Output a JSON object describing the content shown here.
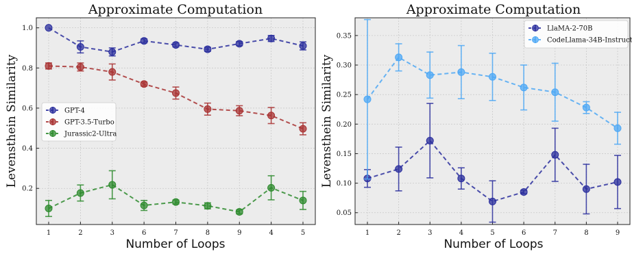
{
  "chart_data": [
    {
      "type": "line",
      "title": "Approximate Computation",
      "xlabel": "Number of Loops",
      "ylabel": "Levensthein Similarity",
      "categories": [
        "1",
        "2",
        "3",
        "6",
        "7",
        "8",
        "9",
        "4",
        "5"
      ],
      "ylim": [
        0.02,
        1.05
      ],
      "yticks": [
        "0.2",
        "0.4",
        "0.6",
        "0.8",
        "1.0"
      ],
      "grid": true,
      "legend_position": "center-left",
      "series": [
        {
          "name": "GPT-4",
          "color": "#2b2f9e",
          "values": [
            1.0,
            0.905,
            0.88,
            0.935,
            0.915,
            0.893,
            0.921,
            0.947,
            0.91
          ],
          "error": [
            0.0,
            0.03,
            0.02,
            0.01,
            0.01,
            0.01,
            0.01,
            0.015,
            0.02
          ]
        },
        {
          "name": "GPT-3.5-Turbo",
          "color": "#a83232",
          "values": [
            0.81,
            0.805,
            0.78,
            0.72,
            0.675,
            0.595,
            0.587,
            0.563,
            0.497
          ],
          "error": [
            0.015,
            0.02,
            0.04,
            0.01,
            0.03,
            0.03,
            0.025,
            0.04,
            0.03
          ]
        },
        {
          "name": "Jurassic2-Ultra",
          "color": "#2e8b2e",
          "values": [
            0.1,
            0.177,
            0.218,
            0.115,
            0.132,
            0.113,
            0.083,
            0.203,
            0.14
          ],
          "error": [
            0.04,
            0.04,
            0.07,
            0.025,
            0.01,
            0.015,
            0.01,
            0.06,
            0.045
          ]
        }
      ]
    },
    {
      "type": "line",
      "title": "Approximate Computation",
      "xlabel": "Number of Loops",
      "ylabel": "Levensthein Similarity",
      "categories": [
        "1",
        "2",
        "3",
        "4",
        "5",
        "6",
        "7",
        "8",
        "9"
      ],
      "ylim": [
        0.03,
        0.38
      ],
      "yticks": [
        "0.05",
        "0.10",
        "0.15",
        "0.20",
        "0.25",
        "0.30",
        "0.35"
      ],
      "grid": true,
      "legend_position": "top-right",
      "series": [
        {
          "name": "LlaMA-2-70B",
          "color": "#2b2f9e",
          "values": [
            0.108,
            0.124,
            0.172,
            0.108,
            0.069,
            0.085,
            0.148,
            0.09,
            0.102
          ],
          "error": [
            0.015,
            0.037,
            0.063,
            0.018,
            0.035,
            0.003,
            0.045,
            0.042,
            0.045
          ]
        },
        {
          "name": "CodeLlama-34B-Instruct",
          "color": "#4ea8f5",
          "values": [
            0.242,
            0.313,
            0.283,
            0.288,
            0.28,
            0.262,
            0.254,
            0.228,
            0.193
          ],
          "error": [
            0.135,
            0.023,
            0.039,
            0.045,
            0.04,
            0.038,
            0.049,
            0.01,
            0.027
          ]
        }
      ]
    }
  ]
}
